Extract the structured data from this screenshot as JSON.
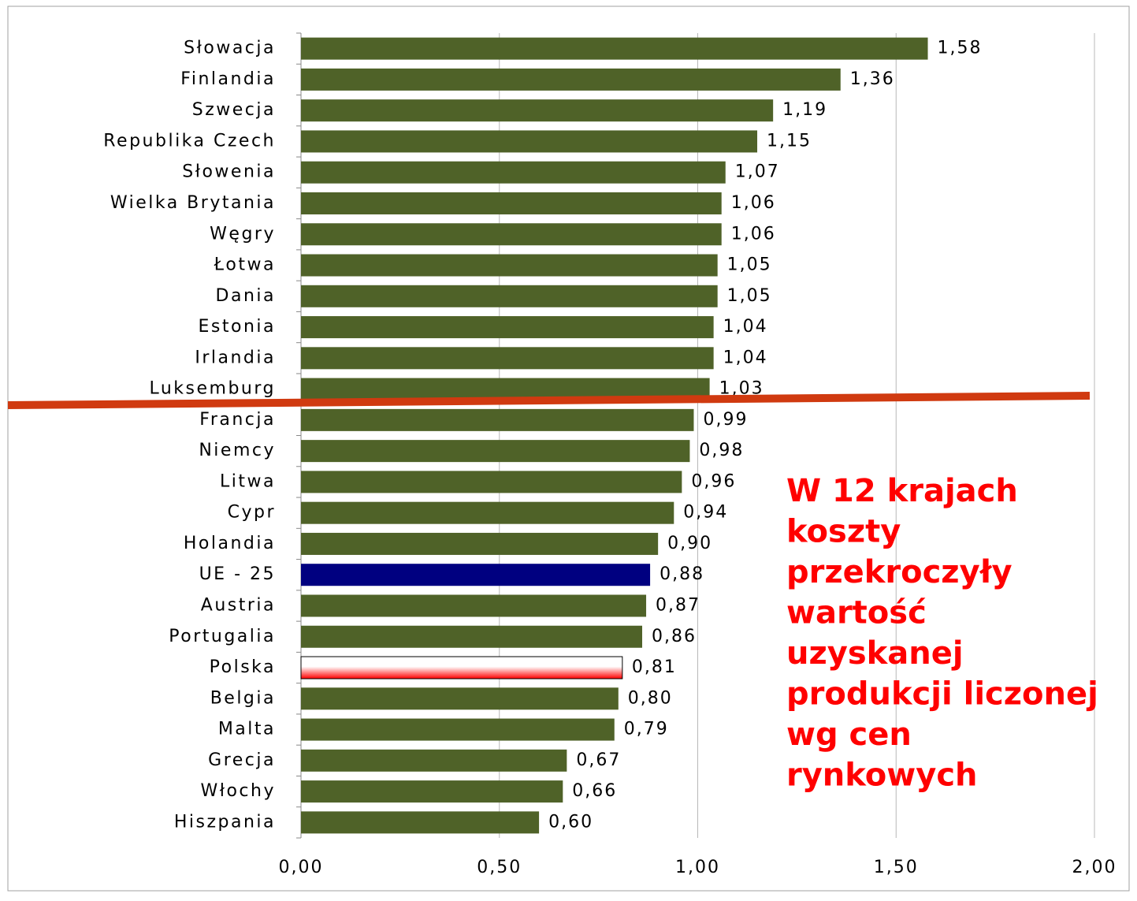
{
  "chart_data": {
    "type": "barh",
    "categories": [
      "Słowacja",
      "Finlandia",
      "Szwecja",
      "Republika Czech",
      "Słowenia",
      "Wielka Brytania",
      "Węgry",
      "Łotwa",
      "Dania",
      "Estonia",
      "Irlandia",
      "Luksemburg",
      "Francja",
      "Niemcy",
      "Litwa",
      "Cypr",
      "Holandia",
      "UE - 25",
      "Austria",
      "Portugalia",
      "Polska",
      "Belgia",
      "Malta",
      "Grecja",
      "Włochy",
      "Hiszpania"
    ],
    "values": [
      1.58,
      1.36,
      1.19,
      1.15,
      1.07,
      1.06,
      1.06,
      1.05,
      1.05,
      1.04,
      1.04,
      1.03,
      0.99,
      0.98,
      0.96,
      0.94,
      0.9,
      0.88,
      0.87,
      0.86,
      0.81,
      0.8,
      0.79,
      0.67,
      0.66,
      0.6
    ],
    "value_labels": [
      "1,58",
      "1,36",
      "1,19",
      "1,15",
      "1,07",
      "1,06",
      "1,06",
      "1,05",
      "1,05",
      "1,04",
      "1,04",
      "1,03",
      "0,99",
      "0,98",
      "0,96",
      "0,94",
      "0,90",
      "0,88",
      "0,87",
      "0,86",
      "0,81",
      "0,80",
      "0,79",
      "0,67",
      "0,66",
      "0,60"
    ],
    "colors": [
      "#4f6228",
      "#4f6228",
      "#4f6228",
      "#4f6228",
      "#4f6228",
      "#4f6228",
      "#4f6228",
      "#4f6228",
      "#4f6228",
      "#4f6228",
      "#4f6228",
      "#4f6228",
      "#4f6228",
      "#4f6228",
      "#4f6228",
      "#4f6228",
      "#4f6228",
      "#000080",
      "#4f6228",
      "#4f6228",
      "#ff0000",
      "#4f6228",
      "#4f6228",
      "#4f6228",
      "#4f6228",
      "#4f6228"
    ],
    "xlim": [
      0,
      2
    ],
    "xticks": [
      {
        "value": 0,
        "label": "0,00"
      },
      {
        "value": 0.5,
        "label": "0,50"
      },
      {
        "value": 1,
        "label": "1,00"
      },
      {
        "value": 1.5,
        "label": "1,50"
      },
      {
        "value": 2,
        "label": "2,00"
      }
    ],
    "grid": true,
    "annotation": [
      "W 12 krajach",
      "koszty",
      "przekroczyły",
      "wartość",
      "uzyskanej",
      "produkcji liczonej",
      "wg cen",
      "rynkowych"
    ]
  }
}
